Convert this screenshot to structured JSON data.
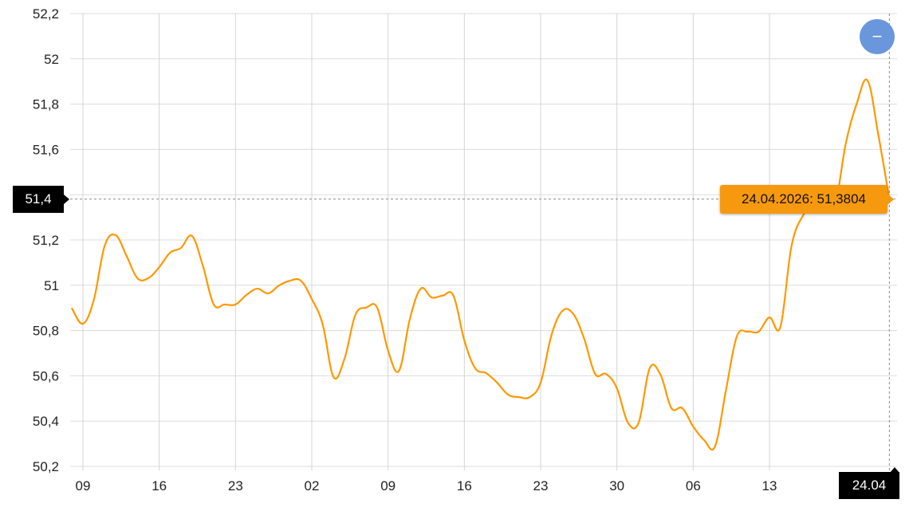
{
  "chart_data": {
    "type": "line",
    "title": "",
    "xlabel": "",
    "ylabel": "",
    "ylim": [
      50.2,
      52.2
    ],
    "yticks": [
      "50,2",
      "50,4",
      "50,6",
      "50,8",
      "51",
      "51,2",
      "51,4",
      "51,6",
      "51,8",
      "52",
      "52,2"
    ],
    "ytick_values": [
      50.2,
      50.4,
      50.6,
      50.8,
      51.0,
      51.2,
      51.4,
      51.6,
      51.8,
      52.0,
      52.2
    ],
    "xticks": [
      {
        "date": "2026-02-09",
        "label": "09"
      },
      {
        "date": "2026-02-16",
        "label": "16"
      },
      {
        "date": "2026-02-23",
        "label": "23"
      },
      {
        "date": "2026-03-02",
        "label": "02"
      },
      {
        "date": "2026-03-09",
        "label": "09"
      },
      {
        "date": "2026-03-16",
        "label": "16"
      },
      {
        "date": "2026-03-23",
        "label": "23"
      },
      {
        "date": "2026-03-30",
        "label": "30"
      },
      {
        "date": "2026-04-06",
        "label": "06"
      },
      {
        "date": "2026-04-13",
        "label": "13"
      }
    ],
    "grid": true,
    "line_color": "#ff9800",
    "series": [
      {
        "x": [
          "2026-02-08",
          "2026-02-09",
          "2026-02-10",
          "2026-02-11",
          "2026-02-12",
          "2026-02-13",
          "2026-02-14",
          "2026-02-15",
          "2026-02-16",
          "2026-02-17",
          "2026-02-18",
          "2026-02-19",
          "2026-02-20",
          "2026-02-21",
          "2026-02-22",
          "2026-02-23",
          "2026-02-24",
          "2026-02-25",
          "2026-02-26",
          "2026-02-27",
          "2026-02-28",
          "2026-03-01",
          "2026-03-02",
          "2026-03-03",
          "2026-03-04",
          "2026-03-05",
          "2026-03-06",
          "2026-03-07",
          "2026-03-08",
          "2026-03-09",
          "2026-03-10",
          "2026-03-11",
          "2026-03-12",
          "2026-03-13",
          "2026-03-14",
          "2026-03-15",
          "2026-03-16",
          "2026-03-17",
          "2026-03-18",
          "2026-03-19",
          "2026-03-20",
          "2026-03-21",
          "2026-03-22",
          "2026-03-23",
          "2026-03-24",
          "2026-03-25",
          "2026-03-26",
          "2026-03-27",
          "2026-03-28",
          "2026-03-29",
          "2026-03-30",
          "2026-03-31",
          "2026-04-01",
          "2026-04-02",
          "2026-04-03",
          "2026-04-04",
          "2026-04-05",
          "2026-04-06",
          "2026-04-07",
          "2026-04-08",
          "2026-04-09",
          "2026-04-10",
          "2026-04-11",
          "2026-04-12",
          "2026-04-13",
          "2026-04-14",
          "2026-04-15",
          "2026-04-16",
          "2026-04-17",
          "2026-04-18",
          "2026-04-19",
          "2026-04-20",
          "2026-04-21",
          "2026-04-22",
          "2026-04-23",
          "2026-04-24"
        ],
        "values": [
          50.897,
          50.83,
          50.936,
          51.175,
          51.221,
          51.13,
          51.031,
          51.031,
          51.08,
          51.144,
          51.165,
          51.218,
          51.087,
          50.915,
          50.915,
          50.915,
          50.957,
          50.985,
          50.964,
          50.999,
          51.02,
          51.02,
          50.939,
          50.827,
          50.594,
          50.675,
          50.869,
          50.901,
          50.901,
          50.711,
          50.622,
          50.851,
          50.985,
          50.946,
          50.954,
          50.954,
          50.756,
          50.633,
          50.612,
          50.57,
          50.517,
          50.506,
          50.506,
          50.57,
          50.781,
          50.887,
          50.873,
          50.763,
          50.608,
          50.608,
          50.545,
          50.394,
          50.394,
          50.633,
          50.605,
          50.457,
          50.457,
          50.376,
          50.316,
          50.288,
          50.535,
          50.774,
          50.795,
          50.795,
          50.858,
          50.816,
          51.168,
          51.302,
          51.344,
          51.351,
          51.351,
          51.626,
          51.802,
          51.904,
          51.661,
          51.3804
        ]
      }
    ],
    "crosshair": {
      "y_label": "51,4",
      "x_label": "24.04"
    },
    "tooltip": "24.04.2026: 51,3804"
  },
  "controls": {
    "zoom_out_label": "−",
    "zoom_button_color": "#6a96dc"
  }
}
